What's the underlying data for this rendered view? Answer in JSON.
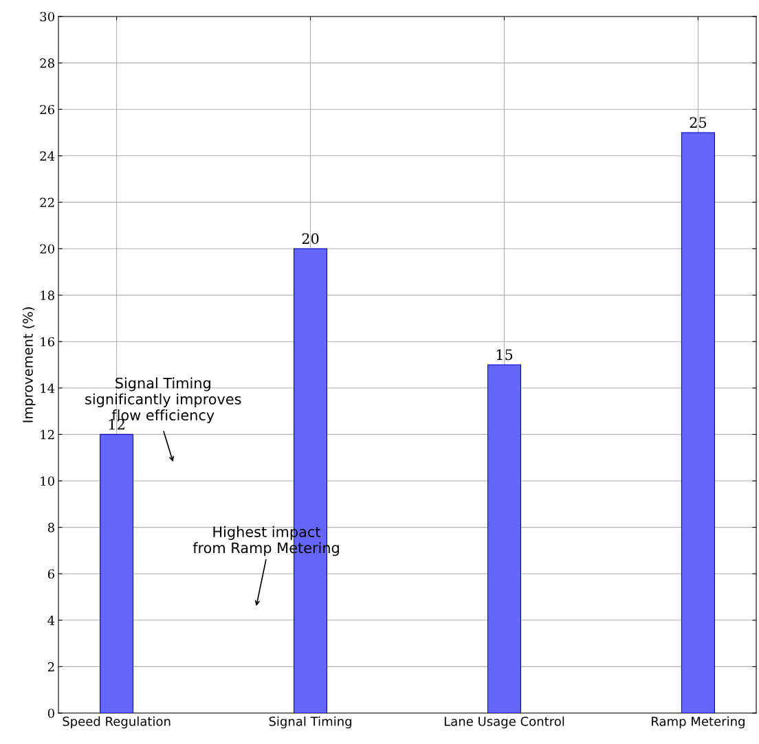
{
  "chart_data": {
    "type": "bar",
    "ylabel": "Improvement (%)",
    "categories": [
      "Speed Regulation",
      "Signal Timing",
      "Lane Usage Control",
      "Ramp Metering"
    ],
    "values": [
      12,
      20,
      15,
      25
    ],
    "color": "#6666ff",
    "ylim": [
      0,
      30
    ],
    "yticks": [
      0,
      2,
      4,
      6,
      8,
      10,
      12,
      14,
      16,
      18,
      20,
      22,
      24,
      26,
      28,
      30
    ],
    "grid": true,
    "data_labels": true,
    "annotations": [
      "Signal Timing\nsignificantly improves\nflow efficiency",
      "Highest impact\nfrom Ramp Metering"
    ]
  }
}
